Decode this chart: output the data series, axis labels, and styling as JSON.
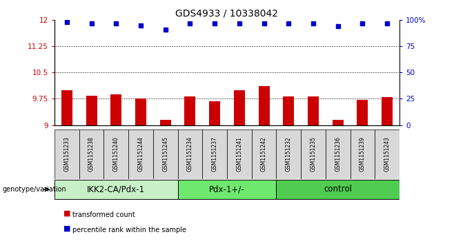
{
  "title": "GDS4933 / 10338042",
  "samples": [
    "GSM1151233",
    "GSM1151238",
    "GSM1151240",
    "GSM1151244",
    "GSM1151245",
    "GSM1151234",
    "GSM1151237",
    "GSM1151241",
    "GSM1151242",
    "GSM1151232",
    "GSM1151235",
    "GSM1151236",
    "GSM1151239",
    "GSM1151243"
  ],
  "bar_values": [
    10.0,
    9.83,
    9.88,
    9.75,
    9.15,
    9.82,
    9.68,
    10.0,
    10.12,
    9.82,
    9.82,
    9.15,
    9.72,
    9.8
  ],
  "dot_values": [
    98,
    97,
    97,
    95,
    91,
    97,
    97,
    97,
    97,
    97,
    97,
    94,
    97,
    97
  ],
  "groups": [
    {
      "label": "IKK2-CA/Pdx-1",
      "start": 0,
      "end": 5,
      "color": "#c8f0c8"
    },
    {
      "label": "Pdx-1+/-",
      "start": 5,
      "end": 9,
      "color": "#90ee90"
    },
    {
      "label": "control",
      "start": 9,
      "end": 14,
      "color": "#50d050"
    }
  ],
  "ymin": 9.0,
  "ymax": 12.0,
  "yticks_left": [
    9,
    9.75,
    10.5,
    11.25,
    12
  ],
  "yticks_right": [
    0,
    25,
    50,
    75,
    100
  ],
  "bar_color": "#cc0000",
  "dot_color": "#0000cc",
  "bar_bottom": 9.0,
  "dot_percent_min": 0,
  "dot_percent_max": 100,
  "grid_lines": [
    9.75,
    10.5,
    11.25
  ],
  "legend_bar_label": "transformed count",
  "legend_dot_label": "percentile rank within the sample",
  "genotype_label": "genotype/variation",
  "title_fontsize": 10,
  "tick_fontsize": 7.5,
  "group_label_fontsize": 8.5,
  "legend_fontsize": 7.5
}
